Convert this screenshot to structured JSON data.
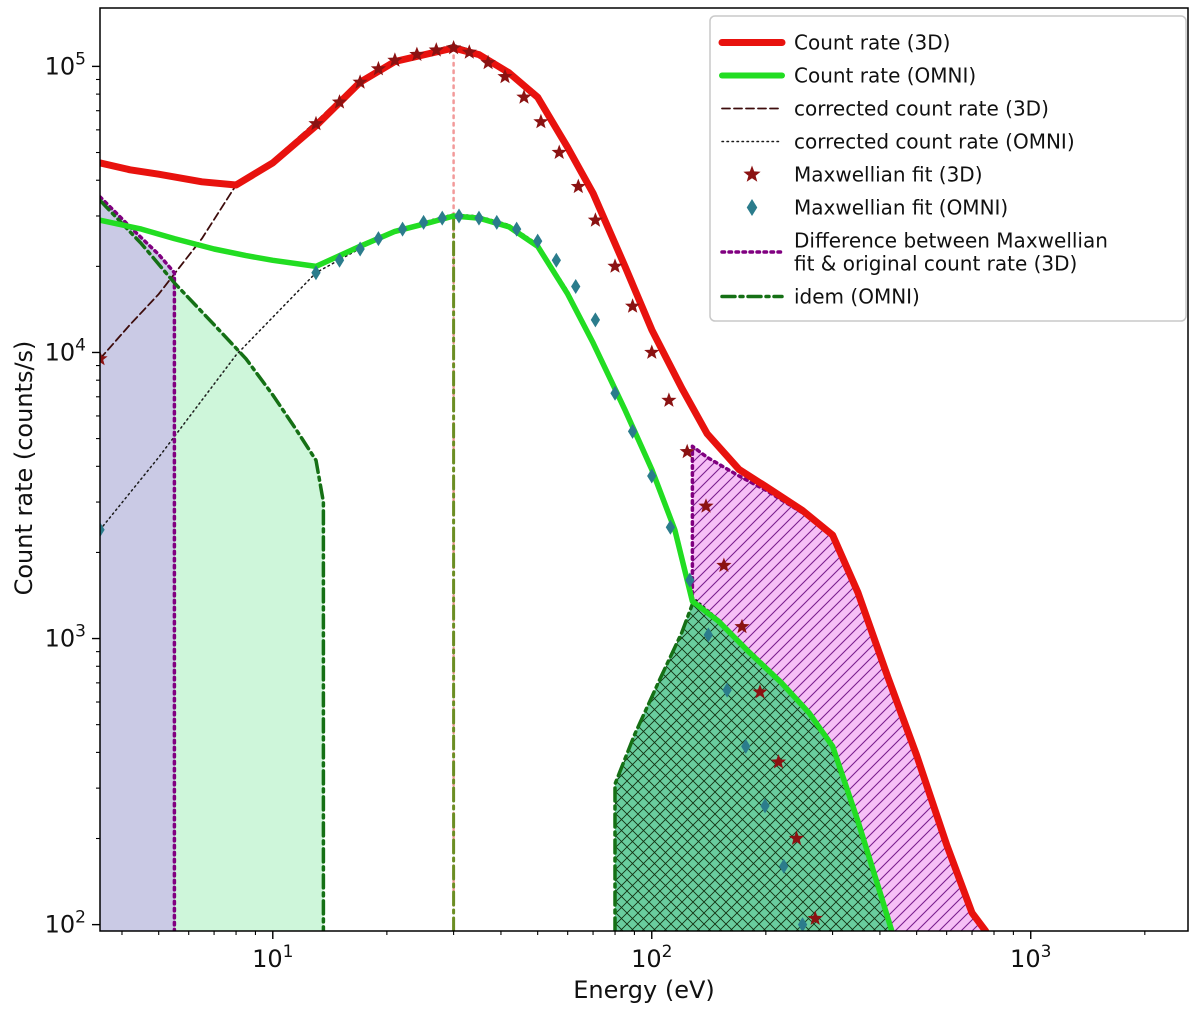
{
  "chart_data": {
    "type": "line",
    "title": "",
    "xlabel": "Energy (eV)",
    "ylabel": "Count rate (counts/s)",
    "xscale": "log",
    "yscale": "log",
    "xlim": [
      3.5,
      2600
    ],
    "ylim": [
      95,
      160000
    ],
    "xticks": [
      10,
      100,
      1000
    ],
    "xticklabels": [
      "10^1",
      "10^2",
      "10^3"
    ],
    "yticks": [
      100,
      1000,
      10000,
      100000
    ],
    "yticklabels": [
      "10^2",
      "10^3",
      "10^4",
      "10^5"
    ],
    "grid": false,
    "legend_position": "upper right",
    "regions": [
      {
        "name": "difference-region-3d-low-energy",
        "fill": "#c7c7e4",
        "opacity": 0.95,
        "hatch": "none",
        "points": [
          [
            3.5,
            95
          ],
          [
            3.5,
            35000
          ],
          [
            4.2,
            27500
          ],
          [
            5.0,
            22000
          ],
          [
            5.5,
            19000
          ],
          [
            5.5,
            95
          ]
        ]
      },
      {
        "name": "difference-region-omni-low-energy",
        "fill": "#cbf5d8",
        "opacity": 0.95,
        "hatch": "none",
        "points": [
          [
            5.5,
            95
          ],
          [
            5.5,
            17500
          ],
          [
            7,
            12500
          ],
          [
            8.5,
            9500
          ],
          [
            10,
            7100
          ],
          [
            11.5,
            5400
          ],
          [
            13,
            4200
          ],
          [
            13.6,
            3000
          ],
          [
            13.6,
            95
          ]
        ]
      },
      {
        "name": "difference-region-3d-high-energy",
        "fill": "#f5b4f5",
        "opacity": 0.85,
        "hatch": "diag",
        "points": [
          [
            128,
            1350
          ],
          [
            128,
            4700
          ],
          [
            140,
            4300
          ],
          [
            170,
            3700
          ],
          [
            200,
            3300
          ],
          [
            250,
            2750
          ],
          [
            300,
            2300
          ],
          [
            350,
            1450
          ],
          [
            420,
            730
          ],
          [
            500,
            390
          ],
          [
            600,
            190
          ],
          [
            700,
            108
          ],
          [
            760,
            95
          ],
          [
            430,
            95
          ],
          [
            400,
            130
          ],
          [
            350,
            230
          ],
          [
            300,
            420
          ],
          [
            260,
            550
          ],
          [
            220,
            700
          ],
          [
            180,
            900
          ],
          [
            150,
            1150
          ]
        ]
      },
      {
        "name": "difference-region-omni-high-energy",
        "fill": "#44c186",
        "opacity": 0.8,
        "hatch": "cross",
        "points": [
          [
            80,
            95
          ],
          [
            80,
            310
          ],
          [
            90,
            460
          ],
          [
            105,
            720
          ],
          [
            120,
            1050
          ],
          [
            128,
            1320
          ],
          [
            150,
            1150
          ],
          [
            180,
            900
          ],
          [
            220,
            700
          ],
          [
            260,
            550
          ],
          [
            300,
            420
          ],
          [
            350,
            230
          ],
          [
            400,
            130
          ],
          [
            430,
            95
          ]
        ]
      }
    ],
    "lines": [
      {
        "name": "peak-marker-3d",
        "color": "#f29a9a",
        "width": 2.5,
        "dash": "2.5 5",
        "x": [
          30,
          30
        ],
        "y": [
          116000,
          95
        ]
      },
      {
        "name": "peak-marker-omni",
        "color": "#6b8e23",
        "width": 3,
        "dash": "13 5 3 5",
        "x": [
          30,
          30
        ],
        "y": [
          30000,
          95
        ]
      },
      {
        "name": "corrected-count-rate-3d",
        "color": "#3d0c0c",
        "width": 1.8,
        "dash": "8 4",
        "x": [
          3.5,
          4.2,
          5,
          6.5,
          8,
          10,
          13,
          17,
          21,
          26,
          30,
          35,
          42,
          50,
          60,
          70,
          85,
          100,
          120,
          140,
          170,
          200,
          250,
          300,
          350,
          420,
          500,
          600,
          700,
          760
        ],
        "y": [
          9500,
          12500,
          16000,
          25000,
          38500,
          47000,
          64000,
          90000,
          106000,
          113000,
          119000,
          112000,
          97000,
          80000,
          53500,
          37000,
          20500,
          12300,
          7700,
          5300,
          3950,
          3450,
          2850,
          2350,
          1500,
          760,
          400,
          195,
          112,
          97
        ]
      },
      {
        "name": "corrected-count-rate-omni",
        "color": "#1a1a1a",
        "width": 1.5,
        "dash": "1.5 3.5",
        "x": [
          3.5,
          5,
          8,
          13,
          20,
          26,
          30,
          35,
          42,
          50,
          60,
          70,
          85,
          100,
          115,
          128,
          150,
          180,
          220,
          260,
          300,
          350,
          400,
          430
        ],
        "y": [
          2400,
          4300,
          9800,
          19000,
          26000,
          29000,
          30500,
          30000,
          28000,
          24000,
          16500,
          11000,
          6500,
          4000,
          2450,
          1400,
          1170,
          920,
          715,
          560,
          430,
          240,
          135,
          100
        ]
      },
      {
        "name": "difference-3d-low-energy",
        "color": "#800080",
        "width": 3.5,
        "dash": "2.5 4.5",
        "x": [
          3.5,
          4.2,
          5,
          5.5,
          5.5
        ],
        "y": [
          35000,
          27500,
          22000,
          19000,
          95
        ]
      },
      {
        "name": "difference-3d-high-energy",
        "color": "#800080",
        "width": 3.5,
        "dash": "2.5 4.5",
        "x": [
          128,
          128,
          140,
          170,
          200,
          250,
          300,
          350,
          420,
          500,
          600,
          700,
          760
        ],
        "y": [
          1350,
          4700,
          4300,
          3700,
          3300,
          2750,
          2300,
          1450,
          730,
          390,
          190,
          108,
          95
        ]
      },
      {
        "name": "difference-omni-low-energy",
        "color": "#157015",
        "width": 3.5,
        "dash": "13 5 3 5",
        "x": [
          3.5,
          4.5,
          5.5,
          7,
          8.5,
          10,
          11.5,
          13,
          13.6,
          13.6
        ],
        "y": [
          34000,
          24000,
          17500,
          12500,
          9500,
          7100,
          5400,
          4200,
          3000,
          95
        ]
      },
      {
        "name": "difference-omni-high-energy",
        "color": "#157015",
        "width": 3.5,
        "dash": "13 5 3 5",
        "x": [
          80,
          80,
          90,
          105,
          120,
          128
        ],
        "y": [
          95,
          310,
          460,
          720,
          1050,
          1320
        ]
      },
      {
        "name": "count-rate-3d",
        "color": "#e8120e",
        "width": 7,
        "dash": "",
        "x": [
          3.5,
          4.2,
          5,
          6.5,
          8,
          10,
          13,
          17,
          21,
          26,
          30,
          35,
          42,
          50,
          60,
          70,
          85,
          100,
          120,
          140,
          170,
          200,
          250,
          300,
          350,
          420,
          500,
          600,
          700,
          760
        ],
        "y": [
          46000,
          43500,
          42000,
          39500,
          38500,
          46000,
          62000,
          88000,
          104000,
          111000,
          116000,
          110000,
          95000,
          78000,
          52000,
          36000,
          20000,
          12000,
          7500,
          5200,
          3900,
          3400,
          2800,
          2300,
          1450,
          730,
          390,
          190,
          110,
          95
        ]
      },
      {
        "name": "count-rate-omni",
        "color": "#22dd22",
        "width": 5.5,
        "dash": "",
        "x": [
          3.5,
          4.5,
          5.5,
          7,
          8.5,
          10,
          13,
          17,
          21,
          26,
          30,
          35,
          42,
          50,
          60,
          70,
          85,
          100,
          115,
          128,
          150,
          180,
          220,
          260,
          300,
          350,
          400,
          430
        ],
        "y": [
          29000,
          27000,
          25000,
          23000,
          21800,
          21000,
          20000,
          23500,
          26500,
          28500,
          30000,
          29500,
          27500,
          23500,
          16000,
          10800,
          6300,
          3900,
          2400,
          1350,
          1150,
          900,
          700,
          550,
          420,
          230,
          130,
          95
        ]
      }
    ],
    "scatter": [
      {
        "name": "maxwellian-fit-3d",
        "marker": "star",
        "color": "#8b1212",
        "size": 8,
        "x": [
          3.5,
          13,
          15,
          17,
          19,
          21,
          24,
          27,
          30,
          33,
          37,
          41,
          46,
          51,
          57,
          64,
          71,
          80,
          89,
          100,
          111,
          124,
          139,
          155,
          173,
          193,
          216,
          241,
          270
        ],
        "y": [
          9500,
          63000,
          75000,
          88000,
          98000,
          105000,
          110000,
          114000,
          116000,
          112000,
          103000,
          92000,
          78000,
          64000,
          50000,
          38000,
          29000,
          20000,
          14500,
          10000,
          6800,
          4500,
          2900,
          1800,
          1100,
          650,
          370,
          200,
          105
        ]
      },
      {
        "name": "maxwellian-fit-omni",
        "marker": "diamond",
        "color": "#2b7c8c",
        "size": 7.5,
        "x": [
          3.5,
          13,
          15,
          17,
          19,
          22,
          25,
          28,
          31,
          35,
          39,
          44,
          50,
          56,
          63,
          71,
          80,
          89,
          100,
          112,
          126,
          141,
          158,
          177,
          199,
          223,
          250
        ],
        "y": [
          2400,
          19000,
          21000,
          23000,
          25000,
          27000,
          28500,
          29500,
          30000,
          29500,
          28500,
          27000,
          24500,
          21000,
          17000,
          13000,
          7200,
          5300,
          3700,
          2450,
          1600,
          1030,
          660,
          420,
          260,
          160,
          100
        ]
      }
    ],
    "legend": [
      {
        "label": "Count rate (3D)",
        "type": "line",
        "color": "#e8120e",
        "width": 7,
        "dash": ""
      },
      {
        "label": "Count rate (OMNI)",
        "type": "line",
        "color": "#22dd22",
        "width": 6,
        "dash": ""
      },
      {
        "label": "corrected count rate (3D)",
        "type": "line",
        "color": "#3d0c0c",
        "width": 1.8,
        "dash": "8 4"
      },
      {
        "label": "corrected count rate (OMNI)",
        "type": "line",
        "color": "#1a1a1a",
        "width": 1.5,
        "dash": "1.5 3.5"
      },
      {
        "label": "Maxwellian fit (3D)",
        "type": "marker",
        "marker": "star",
        "color": "#8b1212"
      },
      {
        "label": "Maxwellian fit (OMNI)",
        "type": "marker",
        "marker": "diamond",
        "color": "#2b7c8c"
      },
      {
        "label": "Difference between Maxwellian\nfit & original count rate (3D)",
        "type": "line",
        "color": "#800080",
        "width": 3.5,
        "dash": "2.5 4.5"
      },
      {
        "label": "idem (OMNI)",
        "type": "line",
        "color": "#157015",
        "width": 3.5,
        "dash": "13 5 3 5"
      }
    ],
    "hatch_colors": {
      "diag": "#7a1f8e",
      "cross": "#123312"
    }
  }
}
